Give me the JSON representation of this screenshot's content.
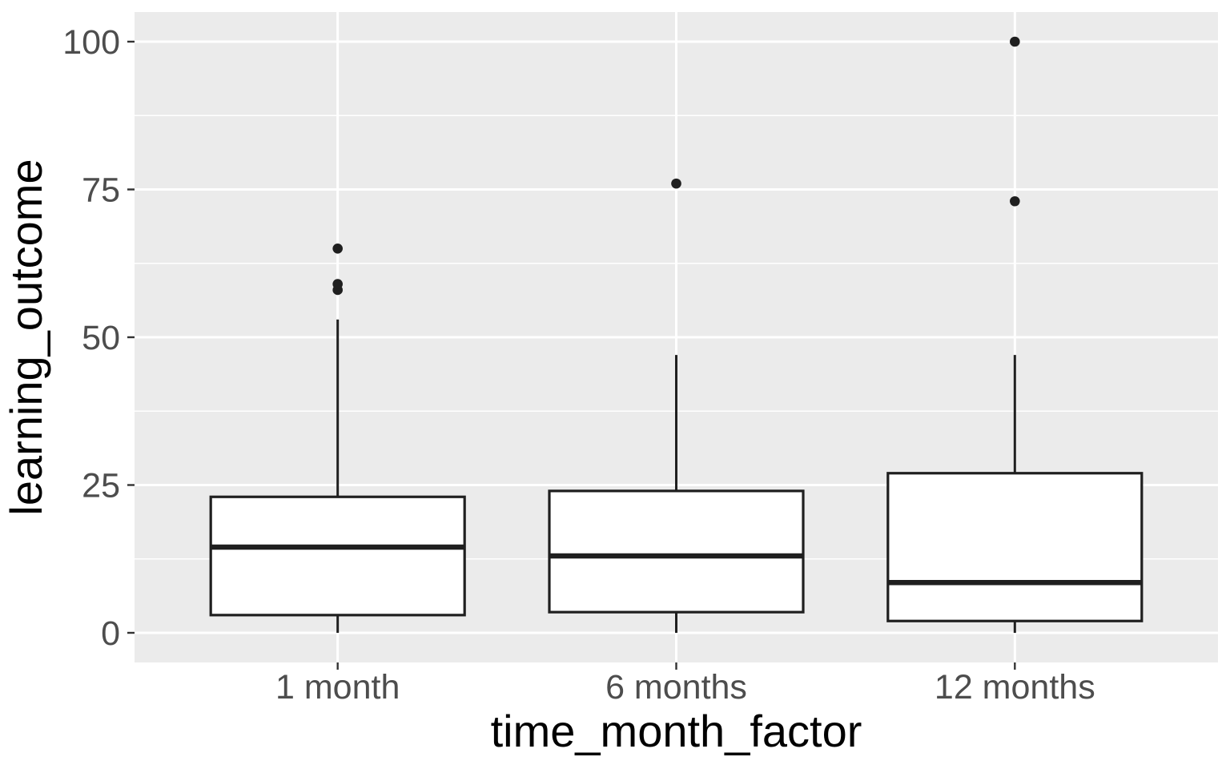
{
  "chart_data": {
    "type": "boxplot",
    "title": "",
    "xlabel": "time_month_factor",
    "ylabel": "learning_outcome",
    "categories": [
      "1 month",
      "6 months",
      "12 months"
    ],
    "y_ticks": [
      0,
      25,
      50,
      75,
      100
    ],
    "y_minor_ticks": [
      12.5,
      37.5,
      62.5,
      87.5
    ],
    "ylim": [
      0,
      100
    ],
    "grid": "white major and minor horizontal gridlines, white vertical gridline at each category, grey panel",
    "legend_position": "none",
    "series": [
      {
        "category": "1 month",
        "whisker_low": 0,
        "q1": 3,
        "median": 14.5,
        "q3": 23,
        "whisker_high": 53,
        "outliers": [
          58,
          59,
          65
        ]
      },
      {
        "category": "6 months",
        "whisker_low": 0,
        "q1": 3.5,
        "median": 13,
        "q3": 24,
        "whisker_high": 47,
        "outliers": [
          76
        ]
      },
      {
        "category": "12 months",
        "whisker_low": 0,
        "q1": 2,
        "median": 8.5,
        "q3": 27,
        "whisker_high": 47,
        "outliers": [
          73,
          100
        ]
      }
    ],
    "colors": {
      "panel_background": "#EBEBEB",
      "gridline": "#FFFFFF",
      "box_fill": "#FFFFFF",
      "box_stroke": "#1F1F1F",
      "outlier": "#1F1F1F",
      "tick_mark": "#333333",
      "tick_label": "#4D4D4D",
      "axis_title": "#000000",
      "outer_background": "#FFFFFF"
    }
  }
}
